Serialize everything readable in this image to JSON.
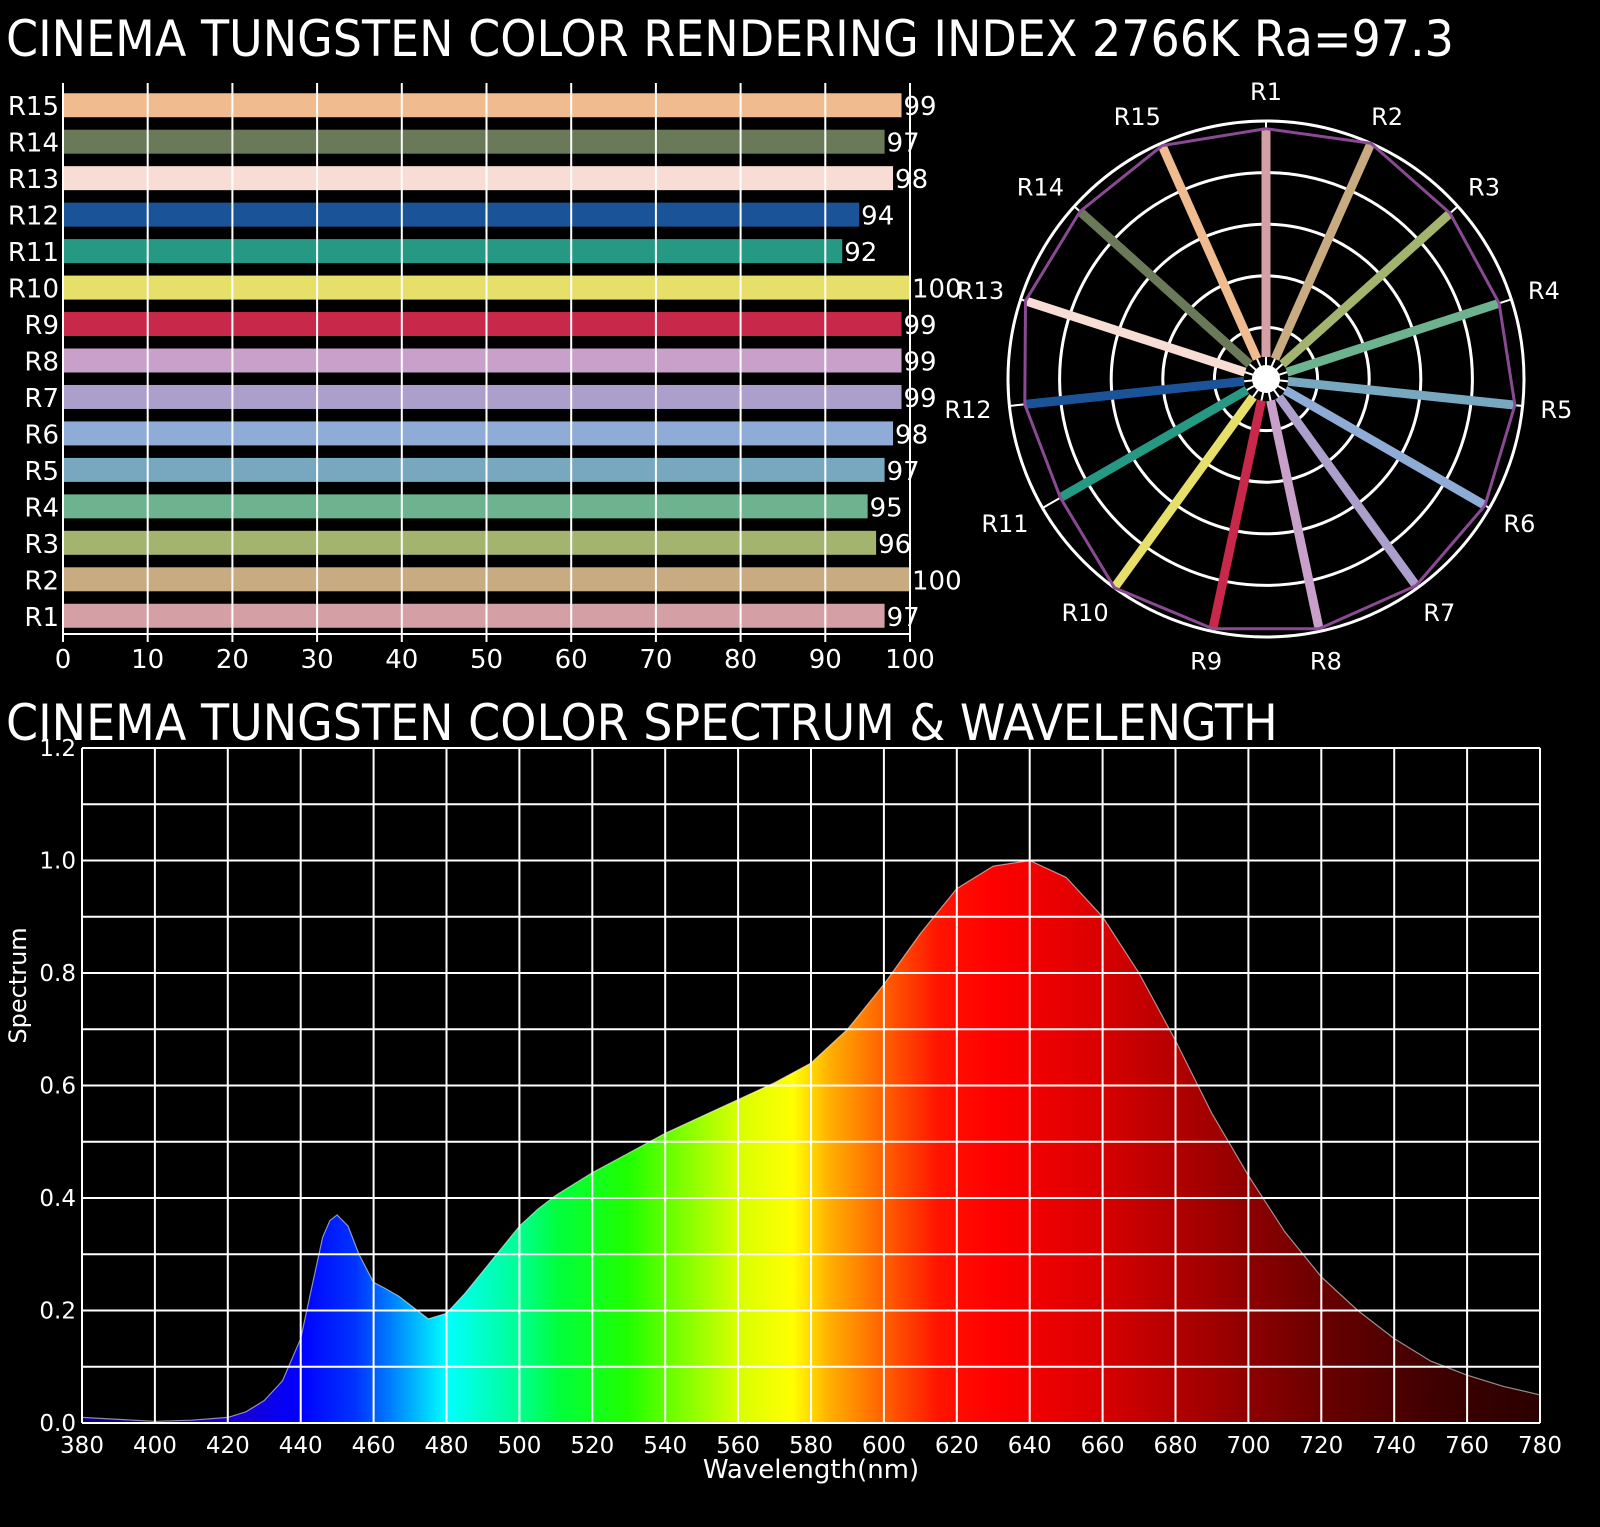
{
  "titles": {
    "cri": "CINEMA TUNGSTEN COLOR RENDERING INDEX 2766K Ra=97.3",
    "spectrum": "CINEMA TUNGSTEN COLOR SPECTRUM & WAVELENGTH"
  },
  "chart_data": [
    {
      "type": "bar",
      "orientation": "horizontal",
      "categories": [
        "R1",
        "R2",
        "R3",
        "R4",
        "R5",
        "R6",
        "R7",
        "R8",
        "R9",
        "R10",
        "R11",
        "R12",
        "R13",
        "R14",
        "R15"
      ],
      "values": [
        97,
        100,
        96,
        95,
        97,
        98,
        99,
        99,
        99,
        100,
        92,
        94,
        98,
        97,
        99
      ],
      "colors": [
        "#d4a0a6",
        "#c8ab80",
        "#a3b46f",
        "#6db38f",
        "#78a7c0",
        "#8eacd6",
        "#ad9fcb",
        "#c9a0c9",
        "#c8284a",
        "#e6df69",
        "#269985",
        "#1b5399",
        "#f8ddd4",
        "#6a7a59",
        "#efbb8f"
      ],
      "xlim": [
        0,
        100
      ],
      "xticks": [
        0,
        10,
        20,
        30,
        40,
        50,
        60,
        70,
        80,
        90,
        100
      ],
      "grid": true
    },
    {
      "type": "radar",
      "categories": [
        "R1",
        "R2",
        "R3",
        "R4",
        "R5",
        "R6",
        "R7",
        "R8",
        "R9",
        "R10",
        "R11",
        "R12",
        "R13",
        "R14",
        "R15"
      ],
      "values": [
        97,
        100,
        96,
        95,
        97,
        98,
        99,
        99,
        99,
        100,
        92,
        94,
        98,
        97,
        99
      ],
      "rlim": [
        0,
        100
      ],
      "outline_color": "#8a4a93"
    },
    {
      "type": "area",
      "x": [
        380,
        400,
        410,
        420,
        425,
        430,
        435,
        440,
        443,
        446,
        448,
        450,
        453,
        456,
        460,
        463,
        467,
        470,
        475,
        480,
        485,
        490,
        495,
        500,
        505,
        510,
        520,
        530,
        540,
        550,
        560,
        570,
        580,
        590,
        600,
        610,
        620,
        630,
        640,
        650,
        660,
        670,
        680,
        690,
        700,
        710,
        720,
        730,
        740,
        750,
        760,
        770,
        780
      ],
      "y": [
        0.01,
        0.003,
        0.005,
        0.01,
        0.02,
        0.04,
        0.075,
        0.15,
        0.24,
        0.33,
        0.36,
        0.37,
        0.35,
        0.3,
        0.25,
        0.24,
        0.225,
        0.21,
        0.185,
        0.195,
        0.23,
        0.27,
        0.31,
        0.35,
        0.38,
        0.405,
        0.445,
        0.48,
        0.515,
        0.545,
        0.575,
        0.605,
        0.64,
        0.7,
        0.78,
        0.87,
        0.95,
        0.99,
        1.0,
        0.97,
        0.9,
        0.8,
        0.68,
        0.55,
        0.44,
        0.34,
        0.26,
        0.2,
        0.15,
        0.11,
        0.085,
        0.065,
        0.05
      ],
      "xlabel": "Wavelength(nm)",
      "ylabel": "Spectrum",
      "xlim": [
        380,
        780
      ],
      "ylim": [
        0,
        1.2
      ],
      "xticks": [
        380,
        400,
        420,
        440,
        460,
        480,
        500,
        520,
        540,
        560,
        580,
        600,
        620,
        640,
        660,
        680,
        700,
        720,
        740,
        760,
        780
      ],
      "yticks": [
        "0.0",
        "0.2",
        "0.4",
        "0.6",
        "0.8",
        "1.0",
        "1.2"
      ],
      "grid": true
    }
  ]
}
